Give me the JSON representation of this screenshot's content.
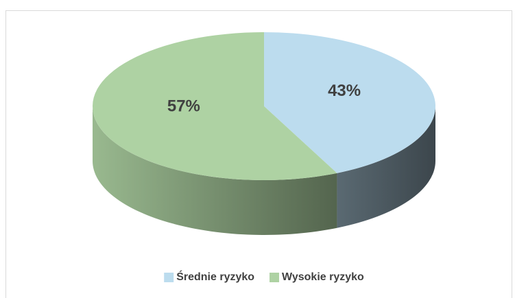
{
  "chart_data": {
    "type": "pie",
    "categories": [
      "Średnie ryzyko",
      "Wysokie ryzyko"
    ],
    "values": [
      43,
      57
    ],
    "value_labels": [
      "43%",
      "57%"
    ],
    "colors": [
      "#bcdcee",
      "#aed2a3"
    ],
    "legend": "bottom"
  }
}
